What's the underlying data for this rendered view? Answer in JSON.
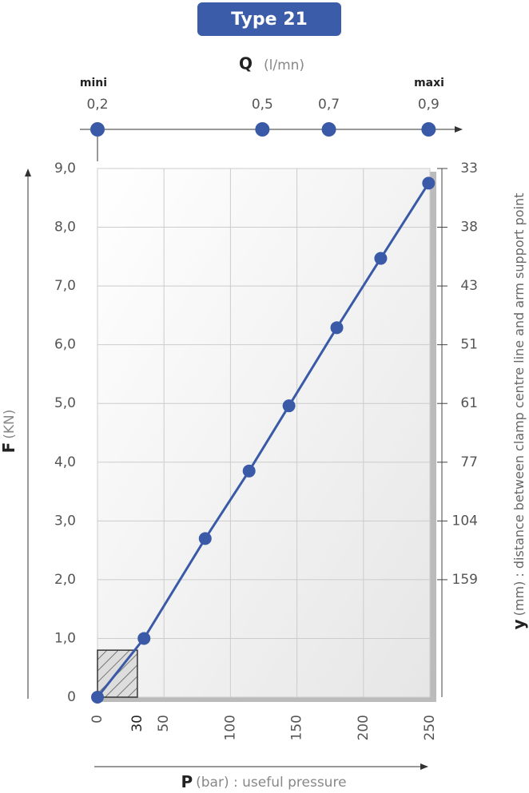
{
  "chart_data": {
    "type": "line",
    "title": "Type 21",
    "x_label": "P",
    "x_label_unit": "(bar) : useful pressure",
    "y_label": "F",
    "y_label_unit": "(KN)",
    "y2_label": "y",
    "y2_label_unit": "(mm) : distance between clamp centre line and arm support point",
    "x2_label": "Q",
    "x2_label_unit": "(l/mn)",
    "x2_min_label": "mini",
    "x2_max_label": "maxi",
    "x2ticks": [
      {
        "value": 0.2,
        "label": "0,2"
      },
      {
        "value": 0.5,
        "label": "0,5"
      },
      {
        "value": 0.7,
        "label": "0,7"
      },
      {
        "value": 0.9,
        "label": "0,9"
      }
    ],
    "x2tick_positions": [
      0,
      124,
      174,
      249
    ],
    "xlim": [
      0,
      250
    ],
    "xticks": [
      0,
      30,
      50,
      100,
      150,
      200,
      250
    ],
    "ylim": [
      0,
      9
    ],
    "yticks": [
      0,
      {
        "value": 1,
        "label": "1,0"
      },
      {
        "value": 2,
        "label": "2,0"
      },
      {
        "value": 3,
        "label": "3,0"
      },
      {
        "value": 4,
        "label": "4,0"
      },
      {
        "value": 5,
        "label": "5,0"
      },
      {
        "value": 6,
        "label": "6,0"
      },
      {
        "value": 7,
        "label": "7,0"
      },
      {
        "value": 8,
        "label": "8,0"
      },
      {
        "value": 9,
        "label": "9,0"
      }
    ],
    "y2ticks": [
      33,
      38,
      43,
      51,
      61,
      77,
      104,
      159
    ],
    "grid": true,
    "shaded_region": {
      "x": [
        0,
        30
      ],
      "y": [
        0,
        0.8
      ]
    },
    "series": [
      {
        "color": "#3a5aa8",
        "x": [
          0,
          35,
          81,
          114,
          144,
          180,
          213,
          249
        ],
        "values": [
          0,
          1.0,
          2.7,
          3.85,
          4.96,
          6.29,
          7.47,
          8.75
        ]
      }
    ]
  }
}
